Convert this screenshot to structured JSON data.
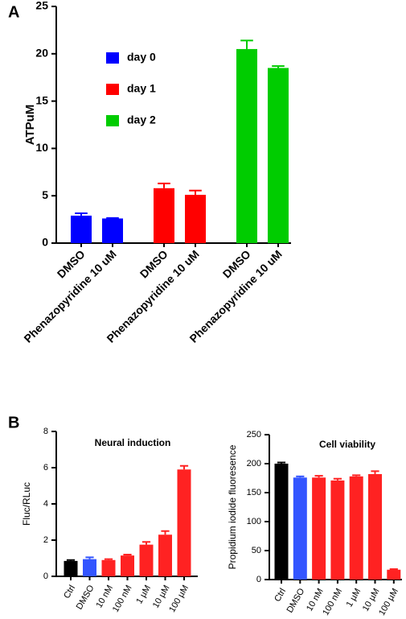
{
  "chart_data": [
    {
      "type": "grouped-bar",
      "panel": "A",
      "ylabel": "ATPuM",
      "categories": [
        "DMSO",
        "Phenazopyridine 10 uM"
      ],
      "series": [
        {
          "name": "day 0",
          "color": "#0000ff",
          "values": [
            2.9,
            2.6
          ],
          "errors": [
            0.25,
            0.05
          ]
        },
        {
          "name": "day 1",
          "color": "#ff0000",
          "values": [
            5.8,
            5.1
          ],
          "errors": [
            0.5,
            0.45
          ]
        },
        {
          "name": "day 2",
          "color": "#00cc00",
          "values": [
            20.5,
            18.5
          ],
          "errors": [
            0.9,
            0.2
          ]
        }
      ],
      "ylim": [
        0,
        25
      ],
      "yticks": [
        0,
        5,
        10,
        15,
        20,
        25
      ]
    },
    {
      "type": "bar",
      "panel": "B",
      "title": "Neural induction",
      "ylabel": "Fluc/RLuc",
      "categories": [
        "Ctrl",
        "DMSO",
        "10 nM",
        "100 nM",
        "1 µM",
        "10 µM",
        "100 µM"
      ],
      "values": [
        0.85,
        0.95,
        0.9,
        1.15,
        1.75,
        2.3,
        5.9
      ],
      "errors": [
        0.05,
        0.1,
        0.05,
        0.05,
        0.15,
        0.2,
        0.2
      ],
      "colors": [
        "#000000",
        "#3355ff",
        "#ff2222",
        "#ff2222",
        "#ff2222",
        "#ff2222",
        "#ff2222"
      ],
      "ylim": [
        0,
        8
      ],
      "yticks": [
        0,
        2,
        4,
        6,
        8
      ]
    },
    {
      "type": "bar",
      "title": "Cell viability",
      "ylabel": "Propidium iodide fluoresence",
      "categories": [
        "Ctrl",
        "DMSO",
        "10 nM",
        "100 nM",
        "1 µM",
        "10 µM",
        "100 µM"
      ],
      "values": [
        200,
        176,
        176,
        171,
        178,
        182,
        17
      ],
      "errors": [
        2,
        2,
        3,
        3,
        2,
        5,
        1
      ],
      "colors": [
        "#000000",
        "#3355ff",
        "#ff2222",
        "#ff2222",
        "#ff2222",
        "#ff2222",
        "#ff2222"
      ],
      "ylim": [
        0,
        250
      ],
      "yticks": [
        0,
        50,
        100,
        150,
        200,
        250
      ]
    }
  ]
}
